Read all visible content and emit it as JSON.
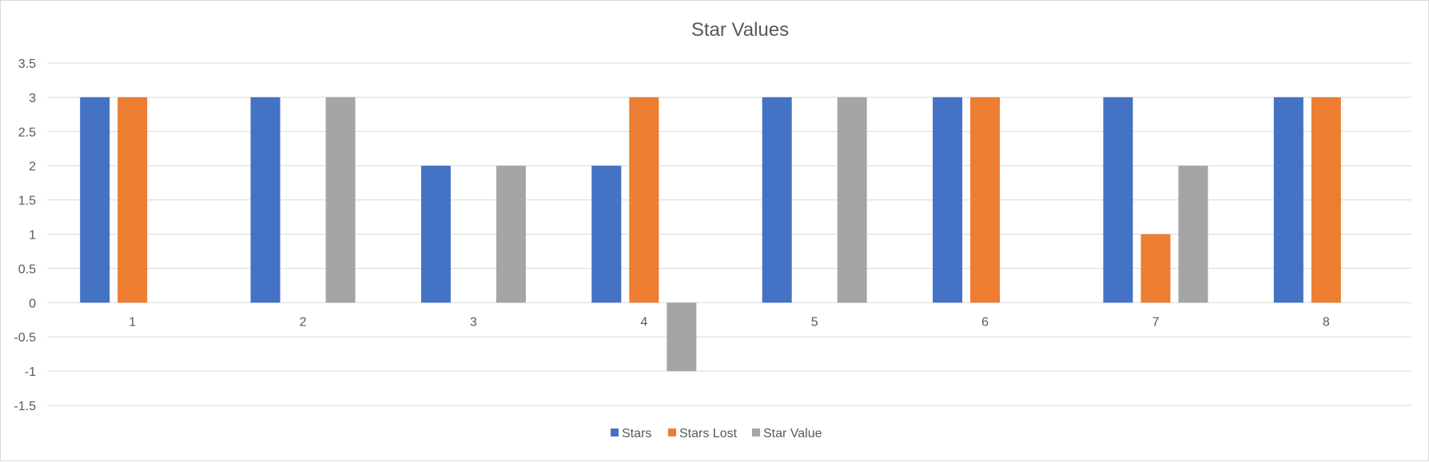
{
  "chart_data": {
    "type": "bar",
    "title": "Star Values",
    "xlabel": "",
    "ylabel": "",
    "categories": [
      "1",
      "2",
      "3",
      "4",
      "5",
      "6",
      "7",
      "8"
    ],
    "series": [
      {
        "name": "Stars",
        "color": "#4472C4",
        "values": [
          3,
          3,
          2,
          2,
          3,
          3,
          3,
          3
        ]
      },
      {
        "name": "Stars Lost",
        "color": "#ED7D31",
        "values": [
          3,
          0,
          0,
          3,
          0,
          3,
          1,
          3
        ]
      },
      {
        "name": "Star Value",
        "color": "#A5A5A5",
        "values": [
          0,
          3,
          2,
          -1,
          3,
          0,
          2,
          0
        ]
      }
    ],
    "ylim": [
      -1.5,
      3.5
    ],
    "yticks": [
      "3.5",
      "3",
      "2.5",
      "2",
      "1.5",
      "1",
      "0.5",
      "0",
      "-0.5",
      "-1",
      "-1.5"
    ],
    "grid": true,
    "legend_position": "bottom"
  }
}
